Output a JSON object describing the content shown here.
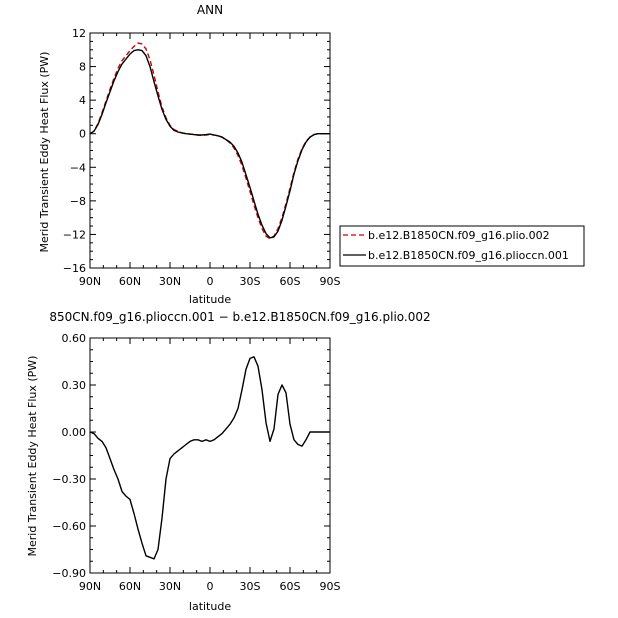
{
  "chart_data": [
    {
      "type": "line",
      "title": "ANN",
      "xlabel": "latitude",
      "ylabel": "Merid Transient Eddy Heat Flux (PW)",
      "xlim": [
        -90,
        90
      ],
      "ylim": [
        -16,
        12
      ],
      "xticks": [
        -90,
        -60,
        -30,
        0,
        30,
        60,
        90
      ],
      "xtick_labels": [
        "90N",
        "60N",
        "30N",
        "0",
        "30S",
        "60S",
        "90S"
      ],
      "yticks": [
        12,
        8,
        4,
        0,
        -4,
        -8,
        -12,
        -16
      ],
      "ytick_labels": [
        "12",
        "8",
        "4",
        "0",
        "−4",
        "−8",
        "−12",
        "−16"
      ],
      "legend_position": "right",
      "series": [
        {
          "name": "b.e12.B1850CN.f09_g16.plio.002",
          "color": "#cc0000",
          "style": "dashed",
          "x": [
            -90,
            -87,
            -84,
            -81,
            -78,
            -75,
            -72,
            -69,
            -66,
            -63,
            -60,
            -57,
            -54,
            -51,
            -48,
            -45,
            -42,
            -39,
            -36,
            -33,
            -30,
            -27,
            -24,
            -21,
            -18,
            -15,
            -12,
            -9,
            -6,
            -3,
            0,
            3,
            6,
            9,
            12,
            15,
            18,
            21,
            24,
            27,
            30,
            33,
            36,
            39,
            42,
            45,
            48,
            51,
            54,
            57,
            60,
            63,
            66,
            69,
            72,
            75,
            78,
            81,
            84,
            87,
            90
          ],
          "y": [
            0.0,
            0.3,
            1.2,
            2.5,
            3.9,
            5.3,
            6.6,
            7.8,
            8.7,
            9.3,
            9.9,
            10.4,
            10.8,
            10.7,
            10.1,
            8.8,
            7.0,
            5.0,
            3.2,
            1.9,
            1.0,
            0.5,
            0.3,
            0.1,
            0.0,
            -0.05,
            -0.1,
            -0.15,
            -0.2,
            -0.15,
            -0.1,
            -0.15,
            -0.25,
            -0.4,
            -0.7,
            -1.1,
            -1.7,
            -2.6,
            -3.8,
            -5.3,
            -6.9,
            -8.5,
            -10.0,
            -11.3,
            -12.2,
            -12.5,
            -12.2,
            -11.3,
            -10.0,
            -8.3,
            -6.5,
            -4.6,
            -3.0,
            -1.8,
            -0.9,
            -0.4,
            -0.1,
            0.0,
            0.0,
            0.0,
            0.0
          ]
        },
        {
          "name": "b.e12.B1850CN.f09_g16.plioccn.001",
          "color": "#000000",
          "style": "solid",
          "x": [
            -90,
            -87,
            -84,
            -81,
            -78,
            -75,
            -72,
            -69,
            -66,
            -63,
            -60,
            -57,
            -54,
            -51,
            -48,
            -45,
            -42,
            -39,
            -36,
            -33,
            -30,
            -27,
            -24,
            -21,
            -18,
            -15,
            -12,
            -9,
            -6,
            -3,
            0,
            3,
            6,
            9,
            12,
            15,
            18,
            21,
            24,
            27,
            30,
            33,
            36,
            39,
            42,
            45,
            48,
            51,
            54,
            57,
            60,
            63,
            66,
            69,
            72,
            75,
            78,
            81,
            84,
            87,
            90
          ],
          "y": [
            0.0,
            0.3,
            1.1,
            2.3,
            3.7,
            5.0,
            6.3,
            7.4,
            8.3,
            8.9,
            9.5,
            9.9,
            10.0,
            9.9,
            9.3,
            8.0,
            6.2,
            4.5,
            2.9,
            1.7,
            0.9,
            0.4,
            0.2,
            0.1,
            0.0,
            -0.05,
            -0.1,
            -0.15,
            -0.15,
            -0.1,
            -0.05,
            -0.15,
            -0.25,
            -0.4,
            -0.7,
            -1.0,
            -1.5,
            -2.3,
            -3.4,
            -4.9,
            -6.4,
            -8.0,
            -9.6,
            -10.9,
            -11.9,
            -12.4,
            -12.3,
            -11.6,
            -10.3,
            -8.6,
            -6.8,
            -4.8,
            -3.2,
            -1.9,
            -1.0,
            -0.4,
            -0.1,
            0.0,
            0.0,
            0.0,
            0.0
          ]
        }
      ]
    },
    {
      "type": "line",
      "title": "850CN.f09_g16.plioccn.001 − b.e12.B1850CN.f09_g16.plio.002",
      "xlabel": "latitude",
      "ylabel": "Merid Transient Eddy Heat Flux (PW)",
      "xlim": [
        -90,
        90
      ],
      "ylim": [
        -0.9,
        0.6
      ],
      "xticks": [
        -90,
        -60,
        -30,
        0,
        30,
        60,
        90
      ],
      "xtick_labels": [
        "90N",
        "60N",
        "30N",
        "0",
        "30S",
        "60S",
        "90S"
      ],
      "yticks": [
        0.6,
        0.3,
        0.0,
        -0.3,
        -0.6,
        -0.9
      ],
      "ytick_labels": [
        "0.60",
        "0.30",
        "0.00",
        "−0.30",
        "−0.60",
        "−0.90"
      ],
      "series": [
        {
          "color": "#000000",
          "style": "solid",
          "x": [
            -90,
            -87,
            -84,
            -81,
            -78,
            -75,
            -72,
            -69,
            -66,
            -63,
            -60,
            -57,
            -54,
            -51,
            -48,
            -45,
            -42,
            -39,
            -36,
            -33,
            -30,
            -27,
            -24,
            -21,
            -18,
            -15,
            -12,
            -9,
            -6,
            -3,
            0,
            3,
            6,
            9,
            12,
            15,
            18,
            21,
            24,
            27,
            30,
            33,
            36,
            39,
            42,
            45,
            48,
            51,
            54,
            57,
            60,
            63,
            66,
            69,
            72,
            75,
            78,
            81,
            84,
            87,
            90
          ],
          "y": [
            0.0,
            -0.01,
            -0.04,
            -0.06,
            -0.1,
            -0.17,
            -0.24,
            -0.3,
            -0.38,
            -0.41,
            -0.43,
            -0.52,
            -0.62,
            -0.71,
            -0.79,
            -0.8,
            -0.81,
            -0.75,
            -0.55,
            -0.3,
            -0.17,
            -0.14,
            -0.12,
            -0.1,
            -0.08,
            -0.06,
            -0.05,
            -0.05,
            -0.06,
            -0.05,
            -0.06,
            -0.05,
            -0.03,
            -0.01,
            0.02,
            0.05,
            0.09,
            0.15,
            0.27,
            0.4,
            0.47,
            0.48,
            0.42,
            0.27,
            0.06,
            -0.06,
            0.02,
            0.24,
            0.3,
            0.25,
            0.05,
            -0.05,
            -0.08,
            -0.09,
            -0.05,
            0.0,
            0.0,
            0.0,
            0.0,
            0.0,
            0.0
          ]
        }
      ]
    }
  ]
}
